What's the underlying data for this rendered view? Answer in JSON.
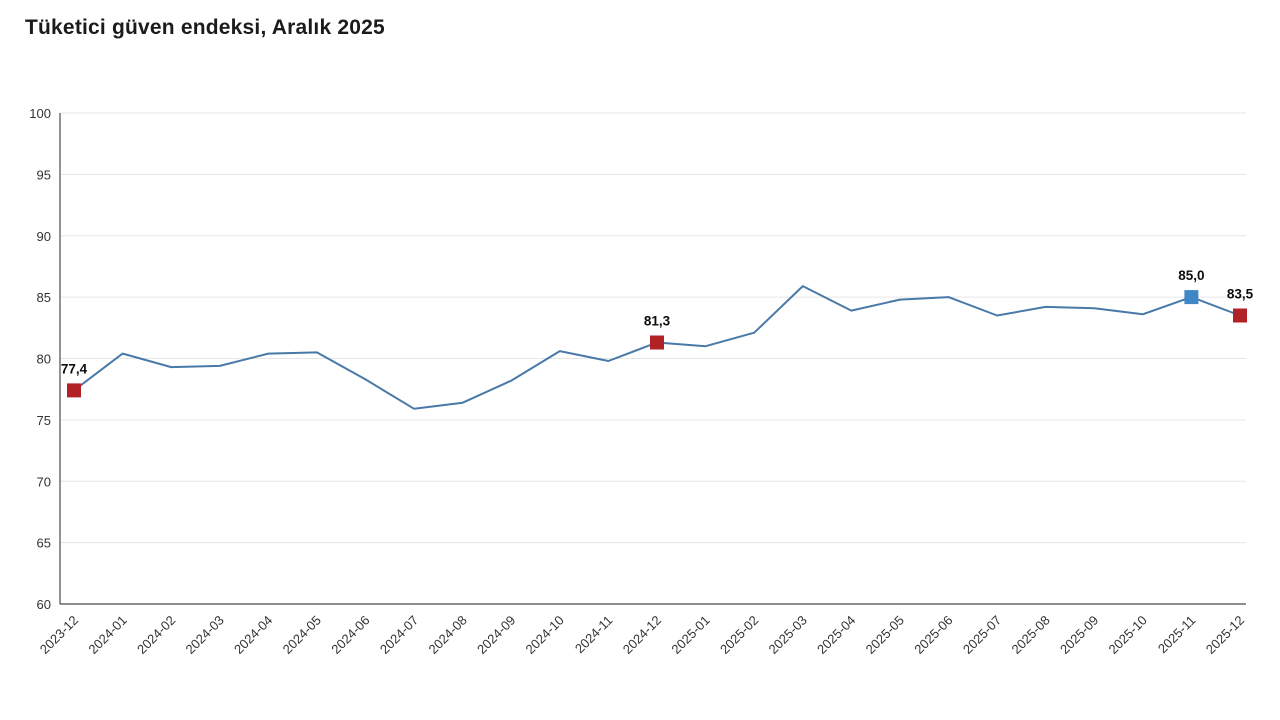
{
  "title": "Tüketici güven endeksi, Aralık 2025",
  "chart_data": {
    "type": "line",
    "title": "Tüketici güven endeksi, Aralık 2025",
    "xlabel": "",
    "ylabel": "",
    "ylim": [
      60,
      100
    ],
    "yticks": [
      60,
      65,
      70,
      75,
      80,
      85,
      90,
      95,
      100
    ],
    "grid": "horizontal",
    "legend": "none",
    "line_color": "#4879a8",
    "axis_color": "#4a4a4a",
    "grid_color": "#e6e6e6",
    "categories": [
      "2023-12",
      "2024-01",
      "2024-02",
      "2024-03",
      "2024-04",
      "2024-05",
      "2024-06",
      "2024-07",
      "2024-08",
      "2024-09",
      "2024-10",
      "2024-11",
      "2024-12",
      "2025-01",
      "2025-02",
      "2025-03",
      "2025-04",
      "2025-05",
      "2025-06",
      "2025-07",
      "2025-08",
      "2025-09",
      "2025-10",
      "2025-11",
      "2025-12"
    ],
    "values": [
      77.4,
      80.4,
      79.3,
      79.4,
      80.4,
      80.5,
      78.3,
      75.9,
      76.4,
      78.2,
      80.6,
      79.8,
      81.3,
      81.0,
      82.1,
      85.9,
      83.9,
      84.8,
      85.0,
      83.5,
      84.2,
      84.1,
      83.6,
      85.0,
      83.5
    ],
    "marked_points": [
      {
        "index": 0,
        "label": "77,4",
        "color": "#b22126"
      },
      {
        "index": 12,
        "label": "81,3",
        "color": "#b22126"
      },
      {
        "index": 23,
        "label": "85,0",
        "color": "#3f86c6"
      },
      {
        "index": 24,
        "label": "83,5",
        "color": "#b22126"
      }
    ]
  }
}
